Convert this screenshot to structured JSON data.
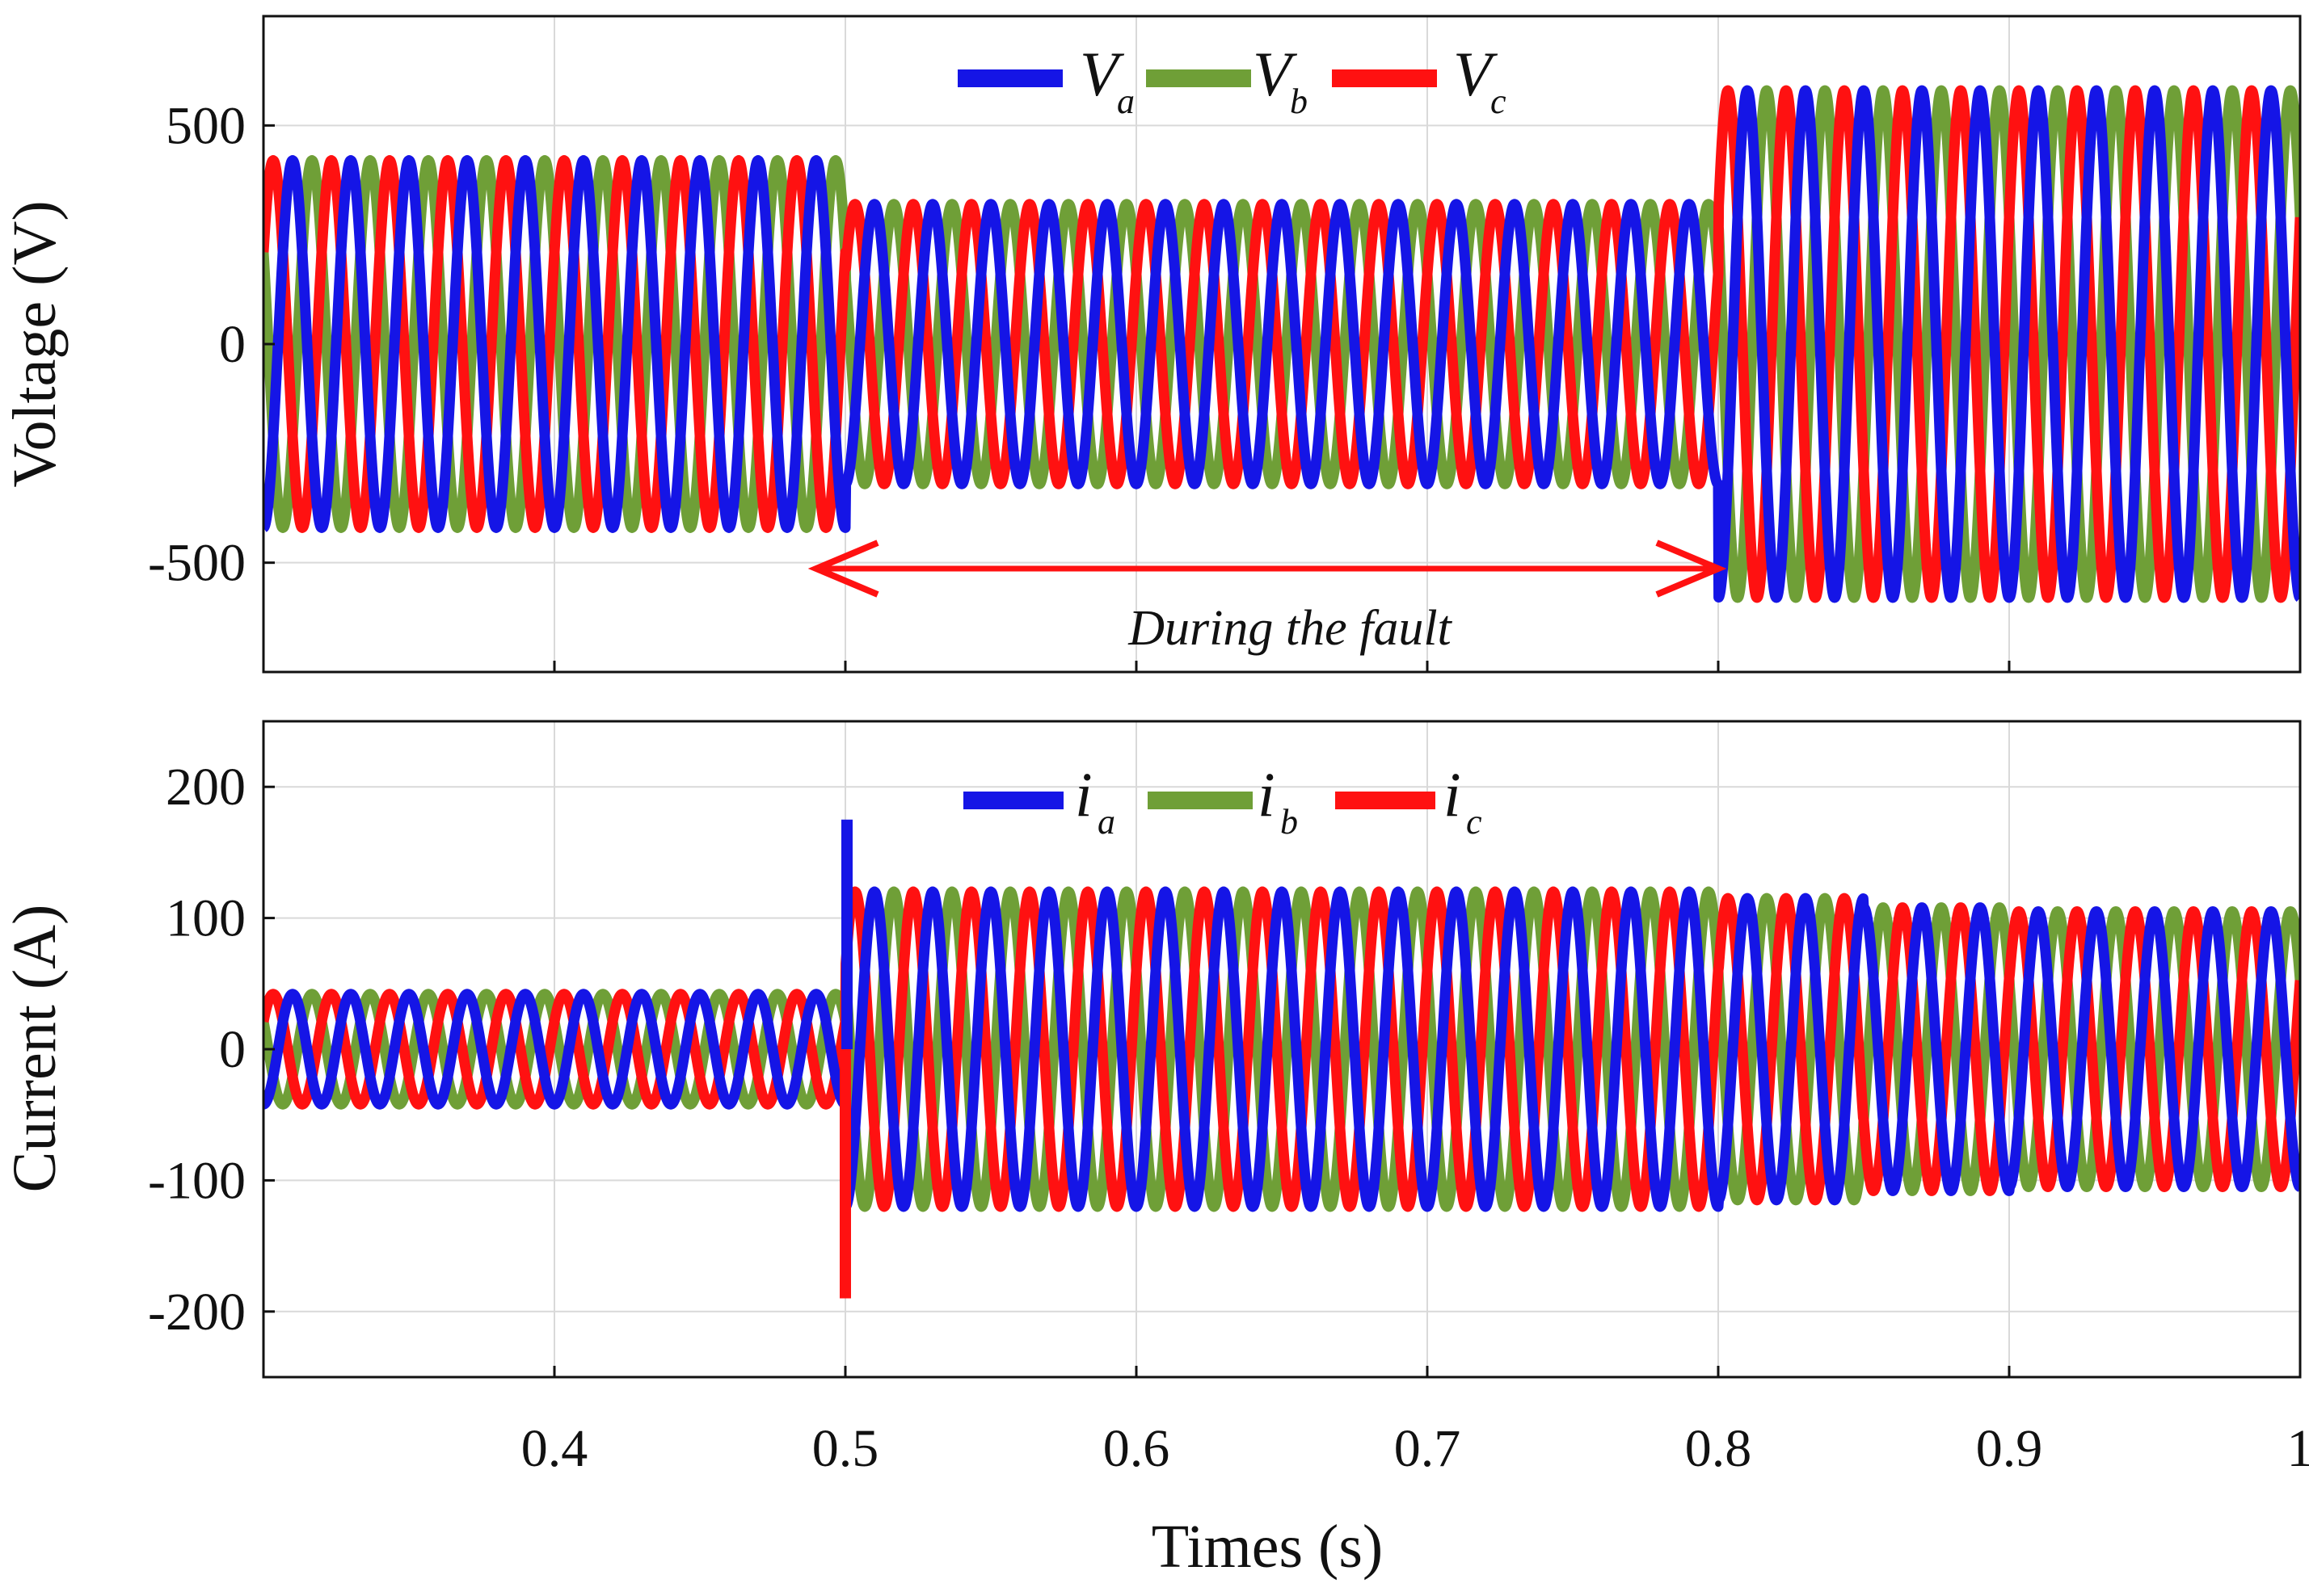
{
  "colors": {
    "a": "#1515e6",
    "b": "#6f9f37",
    "c": "#ff1111",
    "annotation": "#ff1111"
  },
  "chart_data": [
    {
      "type": "line",
      "ylabel": "Voltage (V)",
      "xlim": [
        0.3,
        1.0
      ],
      "ylim": [
        -750,
        750
      ],
      "yticks": [
        500,
        0,
        -500
      ],
      "ytick_labels": [
        "500",
        "0",
        "-500"
      ],
      "frequency_hz": 50,
      "legend_position": "top-center",
      "series": [
        {
          "name": "V",
          "subscript": "a",
          "color_key": "a",
          "phase_deg": -90
        },
        {
          "name": "V",
          "subscript": "b",
          "color_key": "b",
          "phase_deg": -210
        },
        {
          "name": "V",
          "subscript": "c",
          "color_key": "c",
          "phase_deg": 30
        }
      ],
      "amplitude_segments": [
        {
          "x0": 0.3,
          "x1": 0.5,
          "amplitude": 420
        },
        {
          "x0": 0.5,
          "x1": 0.8,
          "amplitude": 320
        },
        {
          "x0": 0.8,
          "x1": 1.0,
          "amplitude": 580
        }
      ],
      "annotation": {
        "text": "During the fault",
        "x_start": 0.5,
        "x_end": 0.8,
        "y": -500
      }
    },
    {
      "type": "line",
      "ylabel": "Current (A)",
      "xlabel": "Times (s)",
      "xlim": [
        0.3,
        1.0
      ],
      "ylim": [
        -250,
        250
      ],
      "yticks": [
        200,
        100,
        0,
        -100,
        -200
      ],
      "ytick_labels": [
        "200",
        "100",
        "0",
        "-100",
        "-200"
      ],
      "xticks": [
        0.4,
        0.5,
        0.6,
        0.7,
        0.8,
        0.9,
        1.0
      ],
      "xtick_labels": [
        "0.4",
        "0.5",
        "0.6",
        "0.7",
        "0.8",
        "0.9",
        "1"
      ],
      "frequency_hz": 50,
      "legend_position": "top-center",
      "series": [
        {
          "name": "i",
          "subscript": "a",
          "color_key": "a",
          "phase_deg": -90
        },
        {
          "name": "i",
          "subscript": "b",
          "color_key": "b",
          "phase_deg": -210
        },
        {
          "name": "i",
          "subscript": "c",
          "color_key": "c",
          "phase_deg": 30
        }
      ],
      "amplitude_segments": [
        {
          "x0": 0.3,
          "x1": 0.5,
          "amplitude": 42
        },
        {
          "x0": 0.5,
          "x1": 0.8,
          "amplitude": 120
        },
        {
          "x0": 0.8,
          "x1": 0.85,
          "amplitude": 115
        },
        {
          "x0": 0.85,
          "x1": 0.9,
          "amplitude": 108
        },
        {
          "x0": 0.9,
          "x1": 1.0,
          "amplitude": 105
        }
      ],
      "transient_spikes": [
        {
          "series": "a",
          "x": 0.5,
          "y": 175
        },
        {
          "series": "c",
          "x": 0.5,
          "y": -190
        }
      ]
    }
  ]
}
